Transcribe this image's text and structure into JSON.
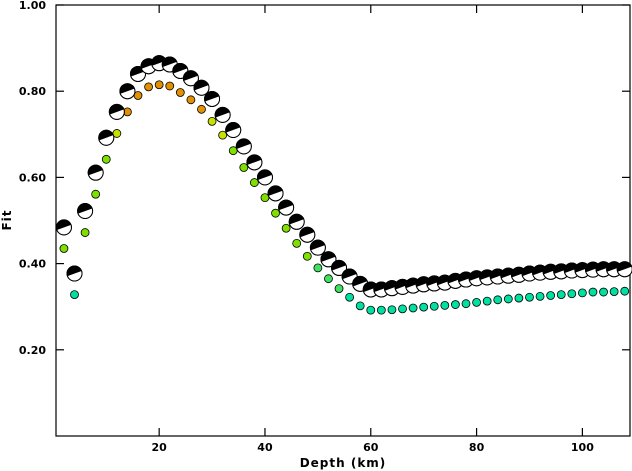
{
  "chart_data": {
    "type": "scatter",
    "title": "",
    "xlabel": "Depth (km)",
    "ylabel": "Fit",
    "xlim": [
      0.5,
      109
    ],
    "ylim": [
      0.0,
      1.0
    ],
    "x_ticks": [
      20,
      40,
      60,
      80,
      100
    ],
    "y_ticks": [
      0.2,
      0.4,
      0.6,
      0.8,
      1.0
    ],
    "x_tick_labels": [
      "20",
      "40",
      "60",
      "80",
      "100"
    ],
    "y_tick_labels": [
      "0.20",
      "0.40",
      "0.60",
      "0.80",
      "1.00"
    ],
    "grid": false,
    "legend": "none",
    "colors": {
      "frame": "#000000",
      "mechanism_dark": "#000000",
      "mechanism_light": "#ffffff",
      "fit_low": "#00e0a0",
      "fit_mid": "#7fe000",
      "fit_high": "#e09000"
    },
    "series": [
      {
        "marker": "focal-mechanism-beachball",
        "x": [
          2,
          4,
          6,
          8,
          10,
          12,
          14,
          16,
          18,
          20,
          22,
          24,
          26,
          28,
          30,
          32,
          34,
          36,
          38,
          40,
          42,
          44,
          46,
          48,
          50,
          52,
          54,
          56,
          58,
          60,
          62,
          64,
          66,
          68,
          70,
          72,
          74,
          76,
          78,
          80,
          82,
          84,
          86,
          88,
          90,
          92,
          94,
          96,
          98,
          100,
          102,
          104,
          106,
          108
        ],
        "values": [
          0.484,
          0.377,
          0.522,
          0.611,
          0.692,
          0.752,
          0.8,
          0.84,
          0.858,
          0.865,
          0.862,
          0.847,
          0.83,
          0.808,
          0.782,
          0.745,
          0.71,
          0.672,
          0.635,
          0.6,
          0.563,
          0.53,
          0.497,
          0.467,
          0.437,
          0.41,
          0.39,
          0.37,
          0.353,
          0.34,
          0.34,
          0.343,
          0.346,
          0.349,
          0.352,
          0.354,
          0.356,
          0.36,
          0.363,
          0.366,
          0.368,
          0.37,
          0.372,
          0.374,
          0.377,
          0.379,
          0.381,
          0.382,
          0.384,
          0.385,
          0.386,
          0.387,
          0.387,
          0.387
        ]
      },
      {
        "marker": "colored-dot",
        "x": [
          2,
          4,
          6,
          8,
          10,
          12,
          14,
          16,
          18,
          20,
          22,
          24,
          26,
          28,
          30,
          32,
          34,
          36,
          38,
          40,
          42,
          44,
          46,
          48,
          50,
          52,
          54,
          56,
          58,
          60,
          62,
          64,
          66,
          68,
          70,
          72,
          74,
          76,
          78,
          80,
          82,
          84,
          86,
          88,
          90,
          92,
          94,
          96,
          98,
          100,
          102,
          104,
          106,
          108
        ],
        "values": [
          0.435,
          0.328,
          0.472,
          0.561,
          0.642,
          0.702,
          0.752,
          0.79,
          0.81,
          0.815,
          0.812,
          0.797,
          0.78,
          0.758,
          0.73,
          0.698,
          0.662,
          0.623,
          0.588,
          0.553,
          0.517,
          0.482,
          0.447,
          0.417,
          0.39,
          0.365,
          0.342,
          0.322,
          0.302,
          0.292,
          0.292,
          0.293,
          0.295,
          0.297,
          0.299,
          0.301,
          0.303,
          0.305,
          0.307,
          0.31,
          0.313,
          0.316,
          0.318,
          0.32,
          0.322,
          0.324,
          0.326,
          0.328,
          0.33,
          0.332,
          0.334,
          0.334,
          0.335,
          0.336
        ]
      }
    ]
  }
}
